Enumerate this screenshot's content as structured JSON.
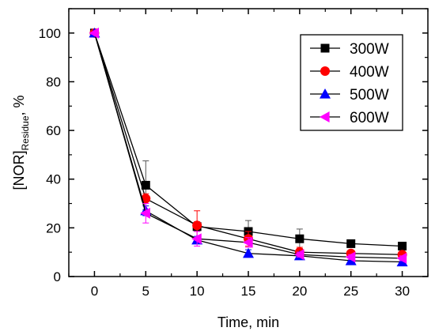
{
  "chart_data": {
    "type": "line",
    "title": "",
    "xlabel": "Time, min",
    "ylabel": {
      "main": "[NOR]",
      "subscript": "Residue",
      "suffix": ", %"
    },
    "x": [
      0,
      5,
      10,
      15,
      20,
      25,
      30
    ],
    "xlim": [
      -2.5,
      32.5
    ],
    "ylim": [
      0,
      110
    ],
    "xticks": [
      "0",
      "5",
      "10",
      "15",
      "20",
      "25",
      "30"
    ],
    "yticks": [
      "0",
      "20",
      "40",
      "60",
      "80",
      "100"
    ],
    "legend_position": "top-right",
    "series": [
      {
        "name": "300W",
        "color": "#000000",
        "marker": "square",
        "values": [
          100,
          37.5,
          20.5,
          18.5,
          15.5,
          13.5,
          12.5
        ],
        "errors": [
          0,
          10,
          2,
          4.5,
          4,
          1.5,
          1
        ]
      },
      {
        "name": "400W",
        "color": "#ff0000",
        "marker": "circle",
        "values": [
          100,
          32,
          21,
          15.5,
          10,
          9.5,
          9
        ],
        "errors": [
          0,
          2,
          6,
          3,
          2,
          1,
          1
        ]
      },
      {
        "name": "500W",
        "color": "#0000ff",
        "marker": "triangle-up",
        "values": [
          100,
          27,
          15,
          9.5,
          8.5,
          6.5,
          6
        ],
        "errors": [
          0,
          2,
          1.5,
          1.5,
          1.5,
          1,
          1
        ]
      },
      {
        "name": "600W",
        "color": "#ff00ff",
        "marker": "triangle-left",
        "values": [
          100,
          26,
          15.5,
          14,
          9,
          8,
          7.5
        ],
        "errors": [
          0,
          4,
          3,
          2,
          1,
          1,
          1
        ]
      }
    ]
  }
}
